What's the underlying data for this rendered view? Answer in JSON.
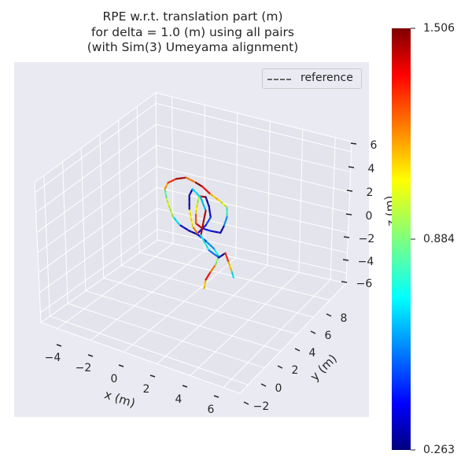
{
  "chart_data": {
    "type": "line",
    "projection": "3d",
    "title": [
      "RPE w.r.t. translation part (m)",
      "for delta = 1.0 (m) using all pairs",
      "(with Sim(3) Umeyama alignment)"
    ],
    "xlabel": "x (m)",
    "ylabel": "y (m)",
    "zlabel": "z (m)",
    "xlim": [
      -5,
      7
    ],
    "ylim": [
      -3,
      10
    ],
    "zlim": [
      -7,
      7
    ],
    "xticks": [
      "−4",
      "−2",
      "0",
      "2",
      "4",
      "6"
    ],
    "yticks": [
      "−2",
      "0",
      "2",
      "4",
      "6",
      "8"
    ],
    "zticks": [
      "6",
      "4",
      "2",
      "0",
      "−2",
      "−4",
      "−6"
    ],
    "grid": true,
    "legend": {
      "position": "top-right",
      "entries": [
        "reference"
      ]
    },
    "colormap": "jet",
    "colorbar": {
      "min": 0.263,
      "max": 1.506,
      "ticks": [
        "1.506",
        "0.884",
        "0.263"
      ]
    },
    "trajectory": {
      "x": [
        1.8,
        1.9,
        2.2,
        2.5,
        2.7,
        2.4,
        1.9,
        1.4,
        0.9,
        0.3,
        -0.1,
        -0.3,
        -0.5,
        -0.6,
        -0.4,
        0.1,
        0.7,
        1.3,
        1.7,
        2.2,
        2.8,
        3.2,
        3.2,
        3.0,
        2.8,
        2.2,
        1.7,
        1.3,
        1.3,
        1.4,
        1.5,
        1.9,
        2.1,
        2.2,
        1.9,
        1.4,
        1.1,
        0.9,
        0.9,
        1.1,
        1.6,
        1.9,
        1.6,
        2.1,
        2.7,
        3.1,
        3.3,
        3.5,
        3.6
      ],
      "y": [
        3,
        3,
        3,
        3,
        3,
        3,
        3,
        3,
        3,
        3,
        3,
        3,
        3,
        3,
        3,
        3,
        3,
        3,
        3,
        3,
        3,
        3,
        3,
        3,
        3,
        3,
        3,
        3,
        3,
        3,
        3,
        3,
        3,
        3,
        3,
        3,
        3,
        3,
        3,
        3,
        3,
        3,
        3,
        3,
        3,
        3,
        3,
        3,
        3
      ],
      "z": [
        -4.2,
        -3.3,
        -2.4,
        -1.6,
        -0.7,
        -0.1,
        0.4,
        0.8,
        0.9,
        1.2,
        1.8,
        2.5,
        3.4,
        4.2,
        4.9,
        5.5,
        5.9,
        5.7,
        5.5,
        5.0,
        4.6,
        4.2,
        3.3,
        2.3,
        1.6,
        1.5,
        1.5,
        1.8,
        2.8,
        3.8,
        4.5,
        4.6,
        3.8,
        2.8,
        1.9,
        0.9,
        1.4,
        3.0,
        4.3,
        5.0,
        4.4,
        3.3,
        0.8,
        -0.4,
        -0.8,
        -0.2,
        -1.0,
        -1.8,
        -2.3
      ],
      "error": [
        1.1,
        1.35,
        1.2,
        0.9,
        0.75,
        0.6,
        0.4,
        0.3,
        0.35,
        0.7,
        0.95,
        1.0,
        0.85,
        1.15,
        1.3,
        1.45,
        1.2,
        1.5,
        1.35,
        1.1,
        1.0,
        0.8,
        0.6,
        0.3,
        0.35,
        0.45,
        1.4,
        1.25,
        1.05,
        0.95,
        1.45,
        0.3,
        0.35,
        0.5,
        0.4,
        1.2,
        1.05,
        0.3,
        0.35,
        0.7,
        0.65,
        1.45,
        0.75,
        0.55,
        0.3,
        1.3,
        1.1,
        0.7,
        0.6
      ]
    }
  }
}
